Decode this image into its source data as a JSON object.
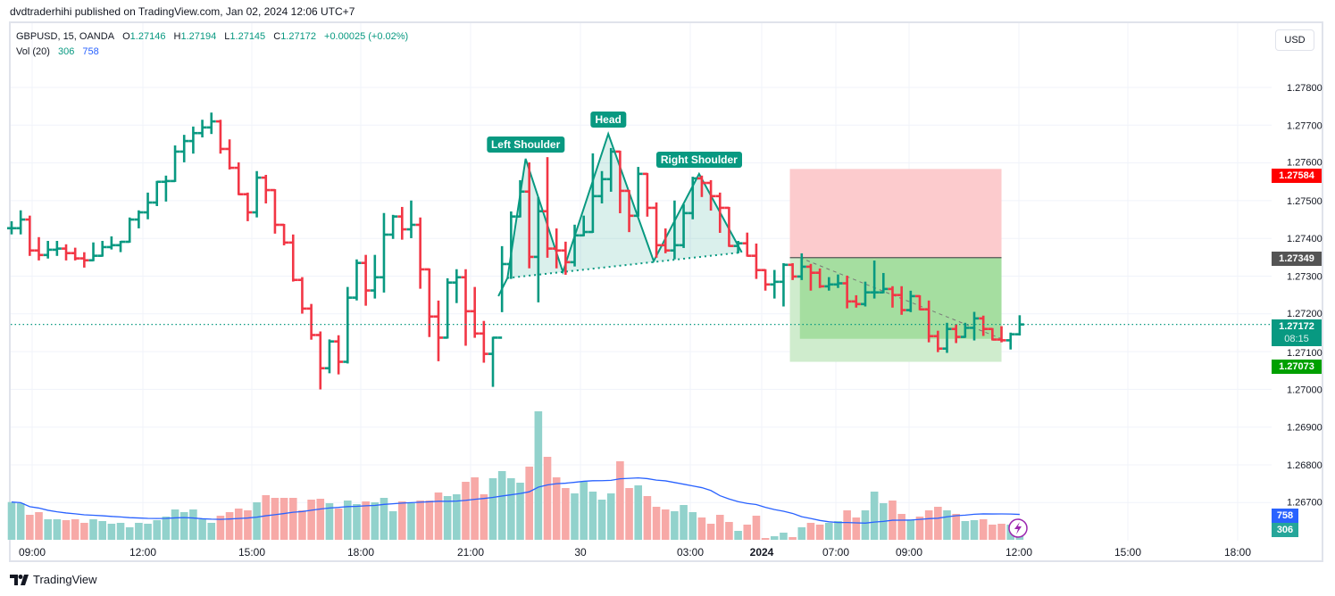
{
  "published": "dvdtraderhihi published on TradingView.com, Jan 02, 2024 12:06 UTC+7",
  "legend": {
    "symbol": "GBPUSD, 15, OANDA",
    "open_label": "O",
    "open": "1.27146",
    "high_label": "H",
    "high": "1.27194",
    "low_label": "L",
    "low": "1.27145",
    "close_label": "C",
    "close": "1.27172",
    "change": "+0.00025 (+0.02%)",
    "vol_label": "Vol (20)",
    "vol": "306",
    "vol_ma": "758"
  },
  "currency_button": "USD",
  "price_tags": {
    "stop": "1.27584",
    "entry": "1.27349",
    "last": "1.27172",
    "countdown": "08:15",
    "target": "1.27073",
    "vol_ma": "758",
    "vol": "306"
  },
  "footer": {
    "brand": "TradingView"
  },
  "colors": {
    "up": "#089981",
    "down": "#f23645",
    "vol_up": "#92d2cc",
    "vol_down": "#f7a9a7",
    "vol_ma": "#2962ff",
    "stop_zone": "#fccbcd",
    "target_zone": "#a5dea0",
    "pattern": "#089981"
  },
  "chart_data": {
    "type": "ohlc",
    "symbol": "GBPUSD",
    "interval": "15",
    "ylim": [
      1.2665,
      1.2786
    ],
    "price_ticks": [
      "1.27800",
      "1.27700",
      "1.27600",
      "1.27500",
      "1.27400",
      "1.27300",
      "1.27200",
      "1.27100",
      "1.27000",
      "1.26900",
      "1.26800",
      "1.26700"
    ],
    "time_ticks": [
      "09:00",
      "12:00",
      "15:00",
      "18:00",
      "21:00",
      "30",
      "03:00",
      "2024",
      "07:00",
      "09:00",
      "12:00",
      "15:00",
      "18:00"
    ],
    "first_open": 1.27427,
    "hlc": [
      [
        1.27443,
        1.27413,
        1.27427
      ],
      [
        1.27472,
        1.27413,
        1.2745
      ],
      [
        1.27458,
        1.27356,
        1.27368
      ],
      [
        1.27401,
        1.27344,
        1.27356
      ],
      [
        1.27391,
        1.27349,
        1.2737
      ],
      [
        1.27391,
        1.27356,
        1.27373
      ],
      [
        1.27382,
        1.27344,
        1.27361
      ],
      [
        1.27373,
        1.27344,
        1.27347
      ],
      [
        1.27361,
        1.27325,
        1.27342
      ],
      [
        1.27387,
        1.27342,
        1.27354
      ],
      [
        1.27391,
        1.27354,
        1.27377
      ],
      [
        1.27403,
        1.27373,
        1.27382
      ],
      [
        1.27391,
        1.27366,
        1.27391
      ],
      [
        1.27453,
        1.27391,
        1.2745
      ],
      [
        1.27472,
        1.27429,
        1.27469
      ],
      [
        1.27519,
        1.27453,
        1.27495
      ],
      [
        1.2755,
        1.27488,
        1.2755
      ],
      [
        1.27564,
        1.275,
        1.27552
      ],
      [
        1.27644,
        1.27552,
        1.2763
      ],
      [
        1.27672,
        1.27604,
        1.27658
      ],
      [
        1.27694,
        1.27627,
        1.27679
      ],
      [
        1.27712,
        1.2767,
        1.27694
      ],
      [
        1.27731,
        1.27679,
        1.2771
      ],
      [
        1.27712,
        1.27627,
        1.27637
      ],
      [
        1.2766,
        1.27585,
        1.27587
      ],
      [
        1.27599,
        1.27517,
        1.27517
      ],
      [
        1.27519,
        1.27448,
        1.27469
      ],
      [
        1.27576,
        1.27458,
        1.27561
      ],
      [
        1.27566,
        1.27495,
        1.27528
      ],
      [
        1.27528,
        1.27415,
        1.27436
      ],
      [
        1.27436,
        1.27384,
        1.27389
      ],
      [
        1.27408,
        1.27288,
        1.2729
      ],
      [
        1.27295,
        1.27203,
        1.27214
      ],
      [
        1.27224,
        1.27134,
        1.27144
      ],
      [
        1.27151,
        1.27002,
        1.27056
      ],
      [
        1.2713,
        1.27045,
        1.27127
      ],
      [
        1.27141,
        1.27042,
        1.27073
      ],
      [
        1.27269,
        1.27071,
        1.27243
      ],
      [
        1.27342,
        1.27238,
        1.27335
      ],
      [
        1.27354,
        1.27224,
        1.27262
      ],
      [
        1.27354,
        1.27243,
        1.27297
      ],
      [
        1.27465,
        1.27259,
        1.2741
      ],
      [
        1.2746,
        1.27401,
        1.27458
      ],
      [
        1.27481,
        1.27399,
        1.27424
      ],
      [
        1.27498,
        1.27403,
        1.27436
      ],
      [
        1.27453,
        1.27269,
        1.27318
      ],
      [
        1.27318,
        1.27141,
        1.27193
      ],
      [
        1.27233,
        1.27077,
        1.27137
      ],
      [
        1.27292,
        1.27137,
        1.27283
      ],
      [
        1.27316,
        1.27231,
        1.27297
      ],
      [
        1.27316,
        1.27118,
        1.27207
      ],
      [
        1.27269,
        1.27139,
        1.27148
      ],
      [
        1.27179,
        1.27073,
        1.27094
      ],
      [
        1.27137,
        1.27009,
        1.27137
      ],
      [
        1.27377,
        1.27207,
        1.27332
      ],
      [
        1.27469,
        1.27295,
        1.27458
      ],
      [
        1.27552,
        1.27458,
        1.27524
      ],
      [
        1.27599,
        1.27323,
        1.27351
      ],
      [
        1.27507,
        1.27233,
        1.27472
      ],
      [
        1.27613,
        1.27351,
        1.27373
      ],
      [
        1.27424,
        1.27323,
        1.27368
      ],
      [
        1.27389,
        1.27306,
        1.27337
      ],
      [
        1.27434,
        1.27328,
        1.27408
      ],
      [
        1.27458,
        1.27408,
        1.27417
      ],
      [
        1.27623,
        1.27417,
        1.27512
      ],
      [
        1.27576,
        1.27495,
        1.27557
      ],
      [
        1.27637,
        1.27526,
        1.2763
      ],
      [
        1.2763,
        1.27469,
        1.27526
      ],
      [
        1.27526,
        1.27419,
        1.2746
      ],
      [
        1.27587,
        1.2746,
        1.27571
      ],
      [
        1.27571,
        1.2746,
        1.27481
      ],
      [
        1.27493,
        1.27351,
        1.27382
      ],
      [
        1.27424,
        1.27363,
        1.27368
      ],
      [
        1.27498,
        1.27347,
        1.27382
      ],
      [
        1.27488,
        1.27377,
        1.27467
      ],
      [
        1.27561,
        1.27453,
        1.27559
      ],
      [
        1.27564,
        1.27512,
        1.27547
      ],
      [
        1.27552,
        1.27476,
        1.27512
      ],
      [
        1.27519,
        1.27417,
        1.27481
      ],
      [
        1.27481,
        1.2738,
        1.2738
      ],
      [
        1.27391,
        1.27363,
        1.27387
      ],
      [
        1.27413,
        1.27354,
        1.27354
      ],
      [
        1.27384,
        1.27295,
        1.27316
      ],
      [
        1.27316,
        1.27264,
        1.27278
      ],
      [
        1.27314,
        1.27243,
        1.27285
      ],
      [
        1.27332,
        1.27222,
        1.2733
      ],
      [
        1.27332,
        1.27292,
        1.27299
      ],
      [
        1.27358,
        1.27292,
        1.27325
      ],
      [
        1.2733,
        1.27264,
        1.27309
      ],
      [
        1.27318,
        1.27271,
        1.27273
      ],
      [
        1.27295,
        1.27264,
        1.27278
      ],
      [
        1.27302,
        1.27271,
        1.27281
      ],
      [
        1.27299,
        1.27217,
        1.27233
      ],
      [
        1.27247,
        1.27219,
        1.27226
      ],
      [
        1.27283,
        1.27222,
        1.27257
      ],
      [
        1.27339,
        1.27243,
        1.27257
      ],
      [
        1.27306,
        1.27257,
        1.27266
      ],
      [
        1.27271,
        1.27219,
        1.2725
      ],
      [
        1.27271,
        1.272,
        1.2721
      ],
      [
        1.27259,
        1.27207,
        1.27247
      ],
      [
        1.27247,
        1.27212,
        1.27212
      ],
      [
        1.27233,
        1.27127,
        1.27141
      ],
      [
        1.27153,
        1.27101,
        1.27108
      ],
      [
        1.27174,
        1.27099,
        1.2716
      ],
      [
        1.2717,
        1.27125,
        1.27139
      ],
      [
        1.27174,
        1.27139,
        1.27163
      ],
      [
        1.27203,
        1.27132,
        1.27188
      ],
      [
        1.27193,
        1.27144,
        1.2716
      ],
      [
        1.2716,
        1.27132,
        1.27132
      ],
      [
        1.27165,
        1.27127,
        1.2713
      ],
      [
        1.27148,
        1.27108,
        1.27146
      ],
      [
        1.27194,
        1.27145,
        1.27172
      ]
    ],
    "volume": [
      1100,
      1066,
      728,
      806,
      598,
      598,
      572,
      598,
      494,
      598,
      546,
      468,
      494,
      364,
      494,
      468,
      572,
      676,
      884,
      806,
      884,
      598,
      494,
      702,
      806,
      910,
      858,
      1092,
      1300,
      1222,
      1222,
      1222,
      858,
      1170,
      1196,
      1066,
      910,
      1144,
      1040,
      1118,
      1092,
      1222,
      832,
      1118,
      1066,
      1144,
      1144,
      1378,
      1274,
      1326,
      1690,
      1820,
      1326,
      1794,
      2002,
      1794,
      1664,
      2132,
      3744,
      2418,
      1820,
      1508,
      1352,
      1690,
      1404,
      1170,
      1352,
      2288,
      1508,
      1586,
      1274,
      962,
      884,
      832,
      1014,
      806,
      650,
      468,
      728,
      520,
      260,
      442,
      702,
      52,
      104,
      208,
      78,
      364,
      494,
      442,
      494,
      546,
      858,
      650,
      858,
      1404,
      1066,
      1144,
      754,
      572,
      676,
      858,
      962,
      858,
      754,
      546,
      572,
      598,
      442,
      468,
      442,
      306
    ],
    "volume_ma_period": 20,
    "last_price": 1.27172,
    "head_and_shoulders": {
      "points": [
        [
          53.6,
          1.27247
        ],
        [
          54.6,
          1.27295
        ],
        [
          56.6,
          1.27611
        ],
        [
          60.7,
          1.27311
        ],
        [
          65.7,
          1.27677
        ],
        [
          70.7,
          1.2734
        ],
        [
          75.7,
          1.27571
        ],
        [
          80.4,
          1.27363
        ]
      ],
      "neckline": [
        [
          54.6,
          1.27295
        ],
        [
          80.4,
          1.27363
        ]
      ],
      "labels": [
        {
          "text": "Left Shoulder",
          "bar": 56.6,
          "price": 1.27611
        },
        {
          "text": "Head",
          "bar": 65.7,
          "price": 1.27677
        },
        {
          "text": "Right Shoulder",
          "bar": 75.7,
          "price": 1.27571
        }
      ]
    },
    "short_position": {
      "start_bar": 85.7,
      "entry_bar": 86.8,
      "end_bar": 109.0,
      "stop": 1.27584,
      "entry": 1.27349,
      "target": 1.27073,
      "current": 1.27134
    }
  }
}
